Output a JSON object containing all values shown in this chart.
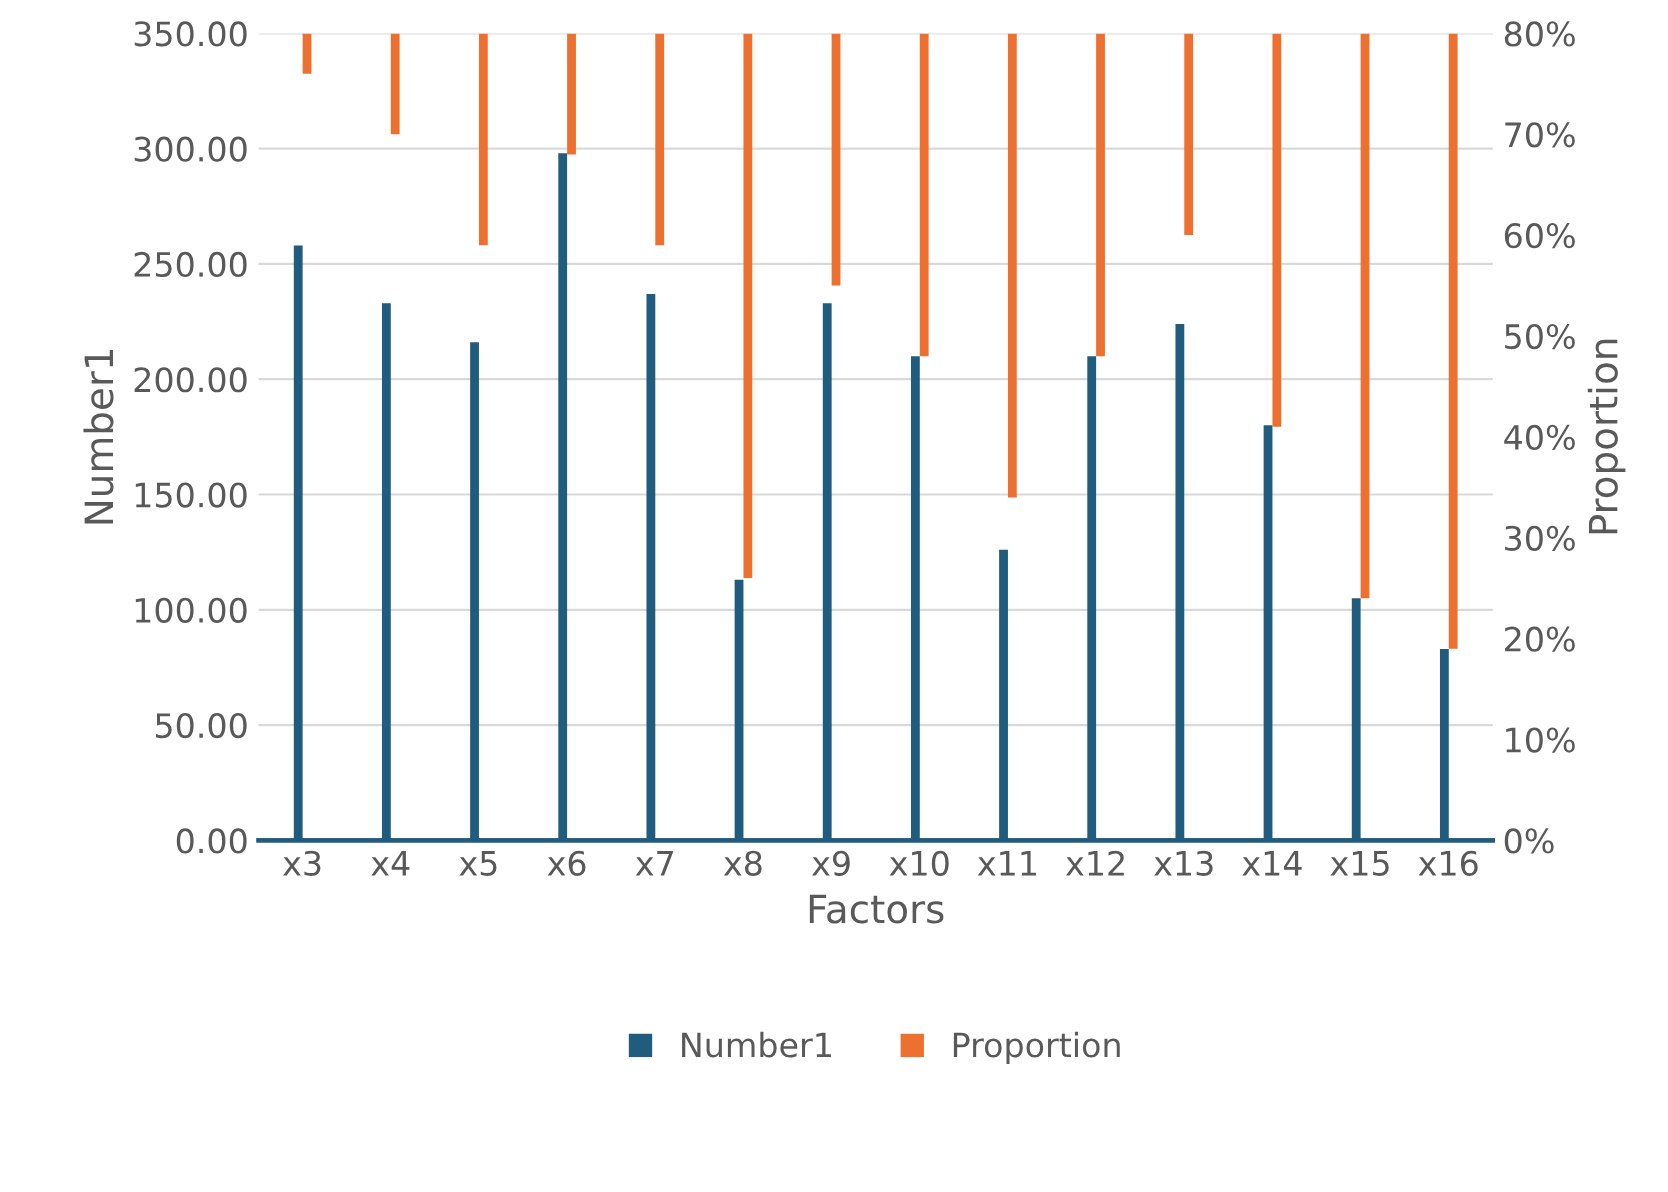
{
  "chart_data": {
    "type": "bar",
    "xlabel": "Factors",
    "ylabel": "Number1",
    "y2label": "Proportion",
    "categories": [
      "x3",
      "x4",
      "x5",
      "x6",
      "x7",
      "x8",
      "x9",
      "x10",
      "x11",
      "x12",
      "x13",
      "x14",
      "x15",
      "x16"
    ],
    "series": [
      {
        "name": "Number1",
        "color": "#1f5c7d",
        "values": [
          258,
          233,
          216,
          298,
          237,
          113,
          233,
          210,
          126,
          210,
          224,
          180,
          105,
          83
        ]
      },
      {
        "name": "Proportion",
        "color": "#ed7030",
        "axis": "y2",
        "base": [
          76,
          70,
          59,
          68,
          59,
          26,
          55,
          48,
          34,
          48,
          60,
          41,
          24,
          19
        ],
        "values": [
          4,
          10,
          21,
          12,
          21,
          54,
          25,
          32,
          46,
          32,
          20,
          39,
          56,
          61
        ]
      }
    ],
    "ylim": [
      0,
      350
    ],
    "yticks": [
      {
        "value": 0,
        "label": "0.00"
      },
      {
        "value": 50,
        "label": "50.00"
      },
      {
        "value": 100,
        "label": "100.00"
      },
      {
        "value": 150,
        "label": "150.00"
      },
      {
        "value": 200,
        "label": "200.00"
      },
      {
        "value": 250,
        "label": "250.00"
      },
      {
        "value": 300,
        "label": "300.00"
      },
      {
        "value": 350,
        "label": "350.00"
      }
    ],
    "y2lim": [
      0,
      80
    ],
    "y2ticks": [
      {
        "value": 0,
        "label": "0%"
      },
      {
        "value": 10,
        "label": "10%"
      },
      {
        "value": 20,
        "label": "20%"
      },
      {
        "value": 30,
        "label": "30%"
      },
      {
        "value": 40,
        "label": "40%"
      },
      {
        "value": 50,
        "label": "50%"
      },
      {
        "value": 60,
        "label": "60%"
      },
      {
        "value": 70,
        "label": "70%"
      },
      {
        "value": 80,
        "label": "80%"
      }
    ],
    "grid": "y",
    "legend": "bottom"
  }
}
